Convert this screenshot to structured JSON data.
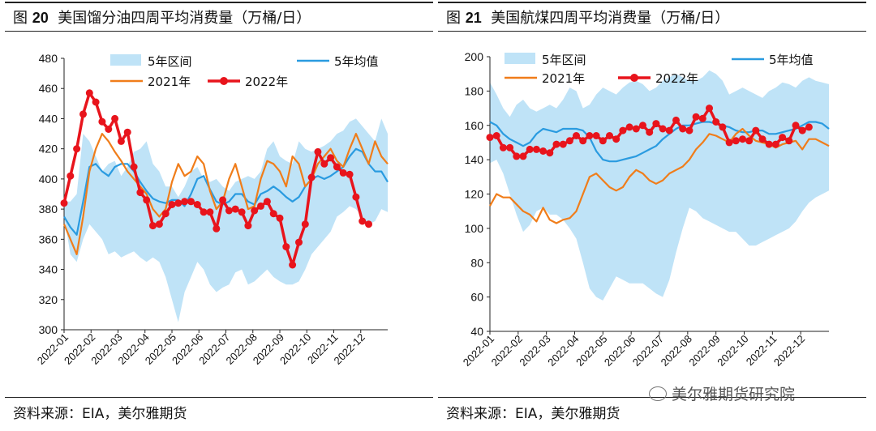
{
  "charts": [
    {
      "fig_label": "图",
      "fig_num": "20",
      "title": "美国馏分油四周平均消费量（万桶/日）",
      "source": "资料来源：EIA，美尔雅期货"
    },
    {
      "fig_label": "图",
      "fig_num": "21",
      "title": "美国航煤四周平均消费量（万桶/日）",
      "source": "资料来源：EIA，美尔雅期货"
    }
  ],
  "watermark": "美尔雅期货研究院",
  "colors": {
    "band": "#bfe3f7",
    "avg": "#2a9be0",
    "y2021": "#f07d1a",
    "y2022": "#e8141c"
  },
  "chart_data": [
    {
      "type": "line",
      "title": "美国馏分油四周平均消费量（万桶/日）",
      "ylim": [
        300,
        480
      ],
      "yticks": [
        300,
        320,
        340,
        360,
        380,
        400,
        420,
        440,
        460,
        480
      ],
      "xticks": [
        "2022-01",
        "2022-02",
        "2022-03",
        "2022-04",
        "2022-05",
        "2022-06",
        "2022-07",
        "2022-08",
        "2022-09",
        "2022-10",
        "2022-11",
        "2022-12"
      ],
      "x_weeks": 52,
      "legend": [
        "5年区间",
        "5年均值",
        "2021年",
        "2022年"
      ],
      "legend_placement": "top",
      "band_upper": [
        385,
        385,
        390,
        430,
        425,
        415,
        405,
        410,
        412,
        402,
        408,
        418,
        420,
        425,
        410,
        405,
        395,
        395,
        388,
        395,
        405,
        408,
        400,
        398,
        400,
        395,
        392,
        398,
        400,
        402,
        400,
        405,
        420,
        425,
        415,
        412,
        410,
        425,
        420,
        418,
        420,
        422,
        425,
        430,
        432,
        438,
        440,
        435,
        430,
        425,
        440,
        430
      ],
      "band_lower": [
        375,
        350,
        345,
        360,
        370,
        365,
        360,
        350,
        352,
        348,
        350,
        352,
        348,
        345,
        348,
        345,
        335,
        320,
        305,
        325,
        335,
        345,
        340,
        330,
        325,
        328,
        330,
        338,
        340,
        330,
        332,
        336,
        340,
        335,
        332,
        330,
        330,
        332,
        340,
        350,
        355,
        360,
        365,
        375,
        378,
        382,
        380,
        375,
        370,
        372,
        380,
        378
      ],
      "series": [
        {
          "name": "5年均值",
          "values": [
            375,
            368,
            363,
            385,
            408,
            410,
            405,
            402,
            408,
            410,
            410,
            405,
            398,
            392,
            387,
            385,
            384,
            386,
            386,
            382,
            390,
            400,
            402,
            393,
            385,
            383,
            385,
            390,
            390,
            385,
            383,
            390,
            392,
            395,
            392,
            388,
            385,
            388,
            395,
            400,
            402,
            400,
            402,
            405,
            408,
            415,
            420,
            418,
            410,
            405,
            405,
            398
          ]
        },
        {
          "name": "2021年",
          "values": [
            370,
            360,
            350,
            375,
            405,
            420,
            430,
            425,
            418,
            412,
            405,
            400,
            395,
            390,
            380,
            375,
            380,
            398,
            410,
            402,
            405,
            415,
            410,
            392,
            380,
            385,
            400,
            410,
            395,
            380,
            382,
            400,
            412,
            410,
            405,
            395,
            415,
            410,
            395,
            400,
            410,
            415,
            420,
            412,
            408,
            420,
            430,
            420,
            410,
            425,
            415,
            410
          ]
        },
        {
          "name": "2022年",
          "values": [
            384,
            402,
            420,
            443,
            457,
            451,
            438,
            433,
            440,
            425,
            431,
            408,
            391,
            386,
            369,
            370,
            377,
            383,
            384,
            385,
            385,
            383,
            378,
            378,
            367,
            386,
            379,
            380,
            378,
            369,
            379,
            382,
            385,
            377,
            374,
            355,
            343,
            358,
            370,
            401,
            418,
            410,
            414,
            408,
            404,
            403,
            388,
            372,
            370
          ]
        }
      ]
    },
    {
      "type": "line",
      "title": "美国航煤四周平均消费量（万桶/日）",
      "ylim": [
        40,
        200
      ],
      "yticks": [
        40,
        60,
        80,
        100,
        120,
        140,
        160,
        180,
        200
      ],
      "xticks": [
        "2022-01",
        "2022-02",
        "2022-03",
        "2022-04",
        "2022-05",
        "2022-06",
        "2022-07",
        "2022-08",
        "2022-09",
        "2022-10",
        "2022-11",
        "2022-12"
      ],
      "x_weeks": 52,
      "legend": [
        "5年区间",
        "5年均值",
        "2021年",
        "2022年"
      ],
      "legend_placement": "top",
      "band_upper": [
        185,
        178,
        170,
        165,
        172,
        175,
        170,
        168,
        170,
        172,
        170,
        175,
        182,
        180,
        170,
        172,
        178,
        182,
        180,
        178,
        182,
        185,
        186,
        184,
        180,
        182,
        186,
        188,
        190,
        188,
        186,
        186,
        188,
        192,
        190,
        186,
        178,
        180,
        182,
        180,
        178,
        176,
        180,
        182,
        185,
        184,
        182,
        186,
        188,
        186,
        185,
        184
      ],
      "band_lower": [
        138,
        140,
        132,
        120,
        108,
        98,
        102,
        110,
        112,
        108,
        108,
        105,
        100,
        94,
        80,
        65,
        60,
        58,
        65,
        72,
        70,
        68,
        68,
        68,
        65,
        62,
        60,
        70,
        86,
        100,
        112,
        110,
        106,
        104,
        102,
        100,
        98,
        98,
        94,
        90,
        90,
        92,
        94,
        96,
        98,
        100,
        104,
        110,
        115,
        118,
        120,
        122
      ],
      "series": [
        {
          "name": "5年均值",
          "values": [
            162,
            160,
            155,
            152,
            150,
            148,
            150,
            155,
            158,
            157,
            156,
            158,
            158,
            158,
            157,
            153,
            145,
            140,
            139,
            139,
            140,
            141,
            142,
            144,
            146,
            148,
            152,
            155,
            158,
            160,
            160,
            161,
            162,
            162,
            161,
            160,
            159,
            157,
            156,
            156,
            157,
            157,
            155,
            155,
            156,
            157,
            158,
            160,
            162,
            162,
            161,
            158
          ]
        },
        {
          "name": "2021年",
          "values": [
            113,
            120,
            118,
            118,
            114,
            110,
            108,
            104,
            112,
            105,
            103,
            105,
            106,
            110,
            120,
            130,
            132,
            128,
            124,
            122,
            124,
            130,
            134,
            132,
            128,
            126,
            128,
            132,
            134,
            136,
            140,
            146,
            150,
            155,
            154,
            152,
            150,
            155,
            158,
            154,
            151,
            150,
            149,
            147,
            149,
            150,
            151,
            146,
            152,
            152,
            150,
            148
          ]
        },
        {
          "name": "2022年",
          "values": [
            153,
            154,
            147,
            147,
            142,
            142,
            146,
            146,
            145,
            144,
            149,
            149,
            151,
            154,
            151,
            154,
            154,
            151,
            154,
            152,
            157,
            159,
            158,
            160,
            156,
            161,
            158,
            157,
            163,
            158,
            157,
            165,
            164,
            170,
            162,
            159,
            150,
            151,
            152,
            151,
            157,
            152,
            149,
            149,
            153,
            151,
            160,
            157,
            159
          ]
        }
      ]
    }
  ]
}
